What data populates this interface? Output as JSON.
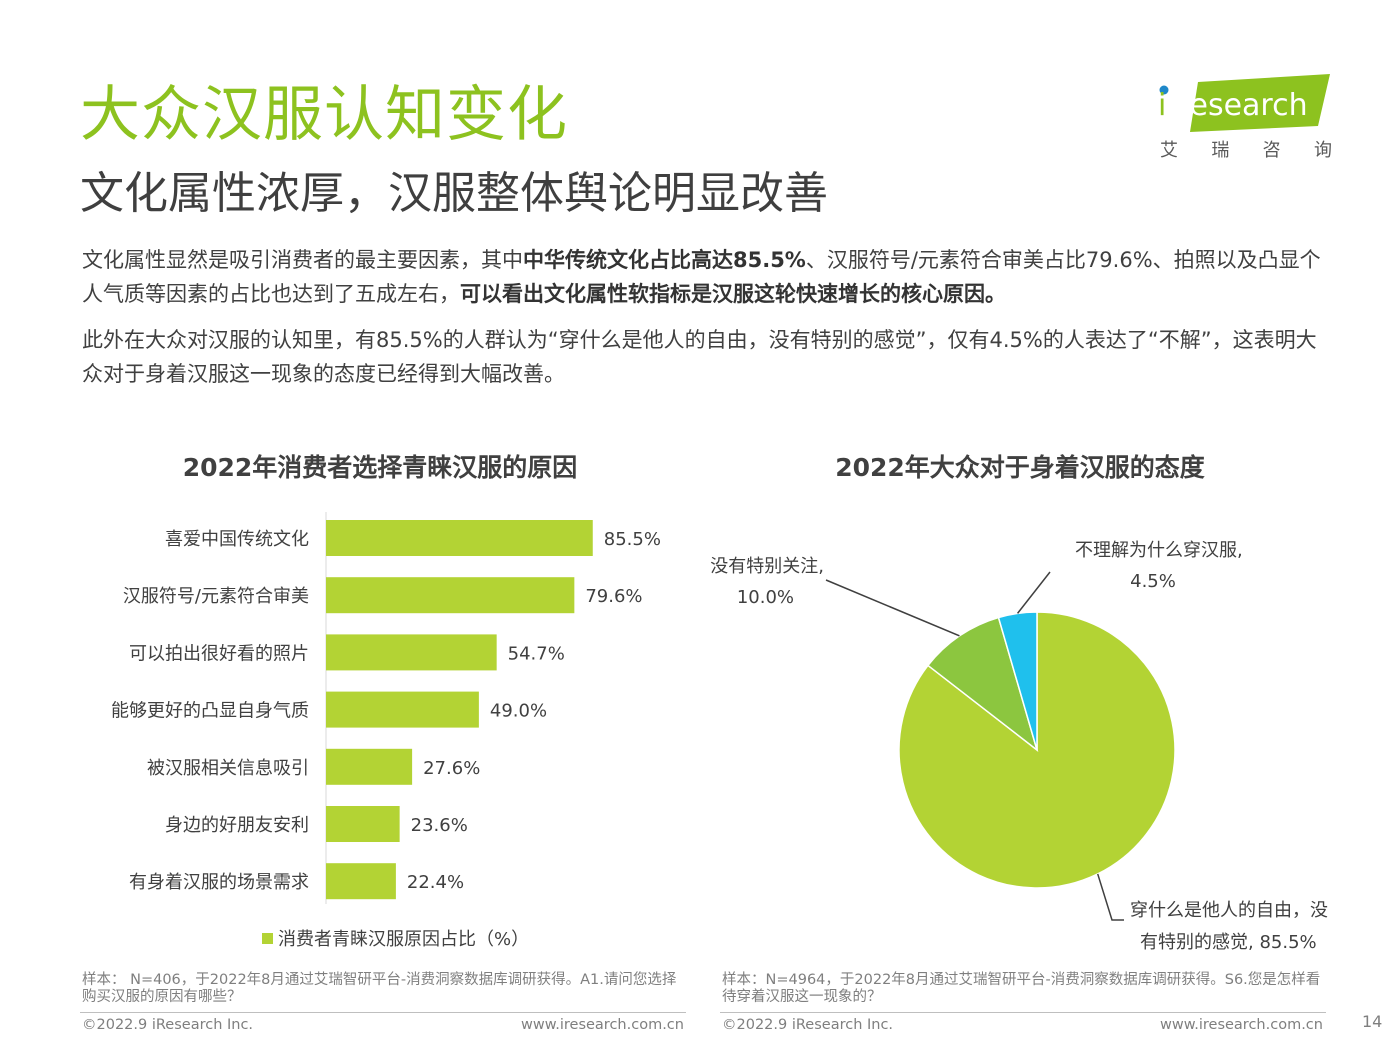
{
  "header": {
    "title": "大众汉服认知变化",
    "subtitle": "文化属性浓厚，汉服整体舆论明显改善",
    "logo_text": "iResearch",
    "logo_cn": [
      "艾",
      "瑞",
      "咨",
      "询"
    ]
  },
  "body": {
    "para1_a": "文化属性显然是吸引消费者的最主要因素，其中",
    "para1_b": "中华传统文化占比高达85.5%",
    "para1_c": "、汉服符号/元素符合审美占比79.6%、拍照以及凸显个人气质等因素的占比也达到了五成左右，",
    "para1_d": "可以看出文化属性软指标是汉服这轮快速增长的核心原因。",
    "para2": "此外在大众对汉服的认知里，有85.5%的人群认为“穿什么是他人的自由，没有特别的感觉”，仅有4.5%的人表达了“不解”，这表明大众对于身着汉服这一现象的态度已经得到大幅改善。"
  },
  "colors": {
    "accent": "#8dc21f",
    "bar": "#b3d334",
    "pie_main": "#b3d334",
    "pie_mid": "#8cc63f",
    "pie_small": "#1fc0ed"
  },
  "chart_data": [
    {
      "type": "bar",
      "orientation": "horizontal",
      "title": "2022年消费者选择青睐汉服的原因",
      "categories": [
        "喜爱中国传统文化",
        "汉服符号/元素符合审美",
        "可以拍出很好看的照片",
        "能够更好的凸显自身气质",
        "被汉服相关信息吸引",
        "身边的好朋友安利",
        "有身着汉服的场景需求"
      ],
      "series": [
        {
          "name": "消费者青睐汉服原因占比（%）",
          "values": [
            85.5,
            79.6,
            54.7,
            49.0,
            27.6,
            23.6,
            22.4
          ]
        }
      ],
      "data_labels": [
        "85.5%",
        "79.6%",
        "54.7%",
        "49.0%",
        "27.6%",
        "23.6%",
        "22.4%"
      ],
      "legend": "消费者青睐汉服原因占比（%）",
      "legend_position": "bottom",
      "xlim": [
        0,
        100
      ]
    },
    {
      "type": "pie",
      "title": "2022年大众对于身着汉服的态度",
      "slices": [
        {
          "label": "穿什么是他人的自由，没有特别的感觉",
          "label_line1": "穿什么是他人的自由，没",
          "label_line2": "有特别的感觉, 85.5%",
          "value": 85.5
        },
        {
          "label": "没有特别关注",
          "label_line1": "没有特别关注,",
          "label_line2": "10.0%",
          "value": 10.0
        },
        {
          "label": "不理解为什么穿汉服",
          "label_line1": "不理解为什么穿汉服,",
          "label_line2": "4.5%",
          "value": 4.5
        }
      ]
    }
  ],
  "notes": {
    "left": "样本： N=406，于2022年8月通过艾瑞智研平台-消费洞察数据库调研获得。A1.请问您选择购买汉服的原因有哪些？",
    "right": "样本：N=4964，于2022年8月通过艾瑞智研平台-消费洞察数据库调研获得。S6.您是怎样看待穿着汉服这一现象的？"
  },
  "footer": {
    "copyright_left": "©2022.9 iResearch Inc.",
    "url_left": "www.iresearch.com.cn",
    "copyright_right": "©2022.9 iResearch Inc.",
    "url_right": "www.iresearch.com.cn",
    "page": "14"
  }
}
